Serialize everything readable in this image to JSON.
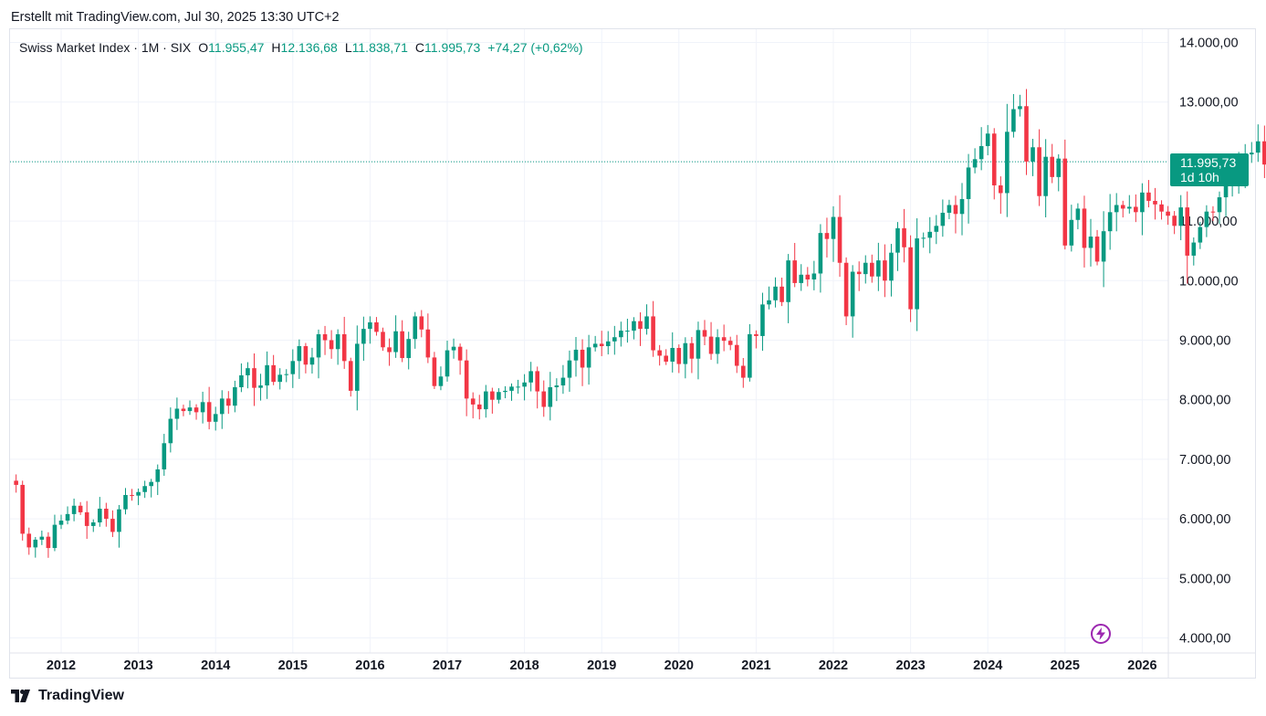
{
  "header": {
    "created_with": "Erstellt mit TradingView.com, Jul 30, 2025 13:30 UTC+2"
  },
  "legend": {
    "symbol": "Swiss Market Index · 1M · SIX",
    "o_label": "O",
    "o_value": "11.955,47",
    "h_label": "H",
    "h_value": "12.136,68",
    "l_label": "L",
    "l_value": "11.838,71",
    "c_label": "C",
    "c_value": "11.995,73",
    "change": "+74,27 (+0,62%)"
  },
  "last_price": {
    "value": "11.995,73",
    "countdown": "1d 10h"
  },
  "footer": {
    "brand": "TradingView"
  },
  "colors": {
    "up": "#089981",
    "down": "#f23645",
    "grid": "#f0f3fa",
    "live_icon": "#9c27b0"
  },
  "icons": {
    "logo": "tradingview-logo-icon",
    "live": "lightning-icon"
  },
  "chart_data": {
    "type": "candlestick",
    "title": "Swiss Market Index · 1M · SIX",
    "interval": "1M",
    "x_start": "2011-06",
    "x_ticks": [
      "2012",
      "2013",
      "2014",
      "2015",
      "2016",
      "2017",
      "2018",
      "2019",
      "2020",
      "2021",
      "2022",
      "2023",
      "2024",
      "2025",
      "2026"
    ],
    "y_ticks": [
      "4.000,00",
      "5.000,00",
      "6.000,00",
      "7.000,00",
      "8.000,00",
      "9.000,00",
      "10.000,00",
      "11.000,00",
      "12.000,00",
      "13.000,00",
      "14.000,00"
    ],
    "ylim": [
      4000,
      14000
    ],
    "last_close": 11995.73,
    "grid": true,
    "closes": [
      6570,
      5750,
      5520,
      5650,
      5700,
      5510,
      5900,
      5970,
      6080,
      6220,
      6110,
      5880,
      5940,
      6170,
      6000,
      5780,
      6160,
      6400,
      6390,
      6450,
      6550,
      6620,
      6830,
      7270,
      7680,
      7850,
      7810,
      7870,
      7790,
      7960,
      7630,
      7760,
      8020,
      7900,
      8210,
      8410,
      8530,
      8200,
      8240,
      8580,
      8300,
      8420,
      8430,
      8650,
      8900,
      8590,
      8710,
      9100,
      9000,
      8850,
      9100,
      8650,
      8150,
      8940,
      9190,
      9300,
      9140,
      8880,
      8800,
      9150,
      8700,
      9020,
      9400,
      9180,
      8710,
      8230,
      8390,
      8830,
      8890,
      8660,
      8020,
      7920,
      7840,
      8140,
      8000,
      8130,
      8150,
      8220,
      8220,
      8290,
      8480,
      8140,
      7880,
      8210,
      8240,
      8370,
      8660,
      8840,
      8540,
      8880,
      8940,
      8900,
      8980,
      9050,
      9160,
      9160,
      9320,
      9190,
      9400,
      8830,
      8740,
      8640,
      8870,
      8600,
      8950,
      8690,
      9170,
      9060,
      8770,
      9050,
      8990,
      8920,
      8570,
      8370,
      9100,
      9070,
      9600,
      9670,
      9900,
      9640,
      10340,
      9960,
      10100,
      10020,
      10120,
      10800,
      10700,
      11070,
      10300,
      9400,
      10150,
      10110,
      10300,
      10070,
      10340,
      10000,
      10470,
      10880,
      10560,
      9520,
      10710,
      10720,
      10820,
      10920,
      11140,
      11270,
      11120,
      11370,
      11900,
      12040,
      12260,
      12470,
      11600,
      11470,
      12500,
      12880,
      12930,
      12000,
      12240,
      11420,
      12080,
      11740,
      12050,
      10590,
      11020,
      11210,
      10550,
      10740,
      10320,
      10830,
      11150,
      11270,
      11210,
      11240,
      11150,
      11480,
      11340,
      11280,
      11160,
      11090,
      10920,
      11230,
      10420,
      10640,
      10900,
      11160,
      11150,
      11400,
      11630,
      11730,
      11870,
      12120,
      12150,
      12340,
      11950,
      12100,
      12240,
      12300,
      12400,
      11950,
      11860,
      11800,
      11600,
      12300,
      12660,
      12920,
      12590,
      12000,
      12000,
      11930,
      11960,
      11700,
      11995.73
    ]
  }
}
